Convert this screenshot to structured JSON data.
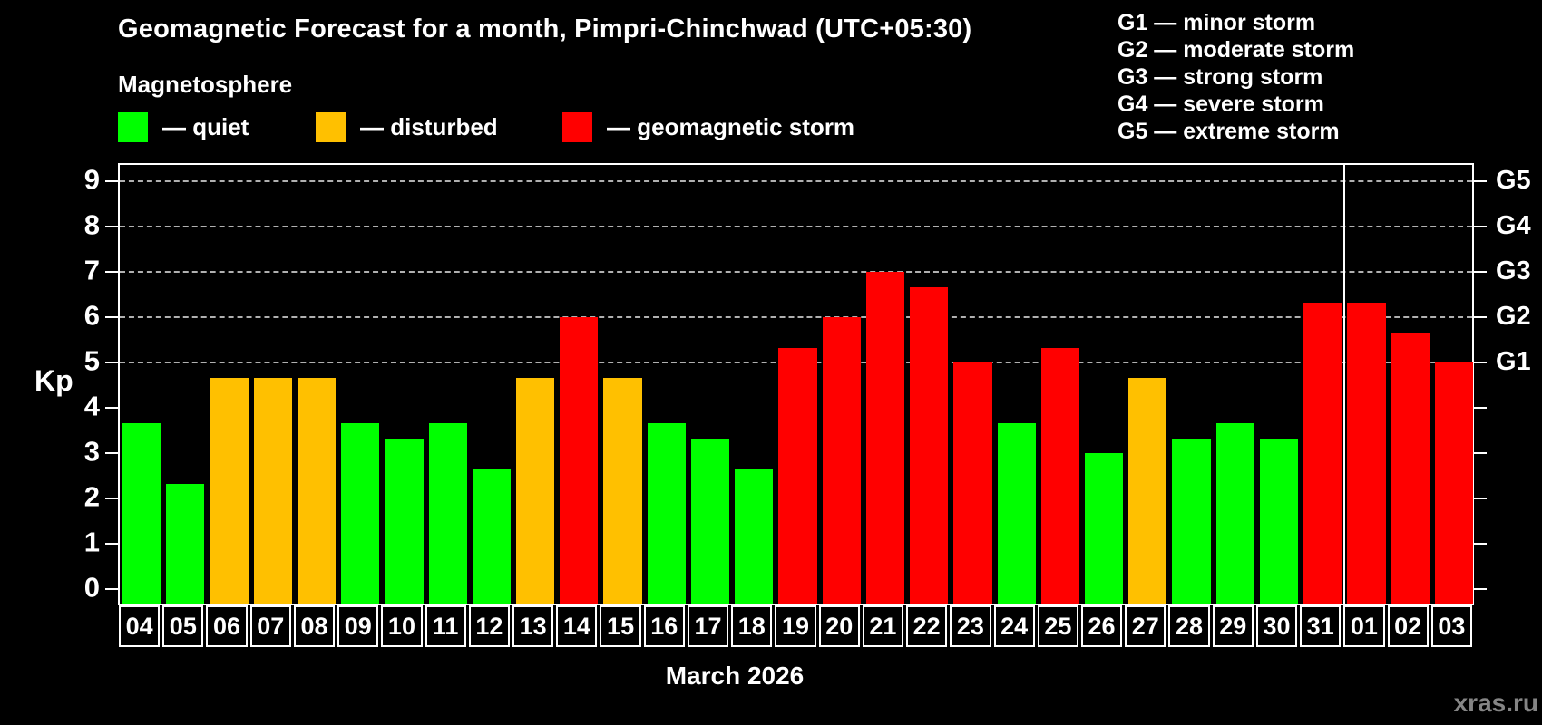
{
  "title": "Geomagnetic Forecast for a month, Pimpri-Chinchwad (UTC+05:30)",
  "subtitle": "Magnetosphere",
  "watermark": "xras.ru",
  "colors": {
    "quiet": "#00ff00",
    "disturbed": "#ffc000",
    "storm": "#ff0000",
    "background": "#000000",
    "text": "#ffffff",
    "grid": "#b0b0b0",
    "watermark_text": "#858585"
  },
  "legend": {
    "items": [
      {
        "status": "quiet",
        "label": "— quiet"
      },
      {
        "status": "disturbed",
        "label": "— disturbed"
      },
      {
        "status": "storm",
        "label": "— geomagnetic storm"
      }
    ]
  },
  "g_legend": {
    "lines": [
      "G1 — minor storm",
      "G2 — moderate storm",
      "G3 — strong storm",
      "G4 — severe storm",
      "G5 — extreme storm"
    ]
  },
  "axes": {
    "y_label": "Kp",
    "y_ticks": [
      0,
      1,
      2,
      3,
      4,
      5,
      6,
      7,
      8,
      9
    ],
    "right_labels": [
      {
        "code": "G1",
        "kp": 5
      },
      {
        "code": "G2",
        "kp": 6
      },
      {
        "code": "G3",
        "kp": 7
      },
      {
        "code": "G4",
        "kp": 8
      },
      {
        "code": "G5",
        "kp": 9
      }
    ],
    "x_label": "March 2026"
  },
  "chart_data": {
    "type": "bar",
    "title": "Geomagnetic Forecast for a month, Pimpri-Chinchwad (UTC+05:30)",
    "xlabel": "March 2026",
    "ylabel": "Kp",
    "ylim": [
      0,
      9
    ],
    "grid": "horizontal dashed lines at Kp 5,6,7,8,9 (G1–G5 levels)",
    "legend_position": "top-left",
    "categories": [
      "04",
      "05",
      "06",
      "07",
      "08",
      "09",
      "10",
      "11",
      "12",
      "13",
      "14",
      "15",
      "16",
      "17",
      "18",
      "19",
      "20",
      "21",
      "22",
      "23",
      "24",
      "25",
      "26",
      "27",
      "28",
      "29",
      "30",
      "31",
      "01",
      "02",
      "03"
    ],
    "values": [
      3.67,
      2.33,
      4.67,
      4.67,
      4.67,
      3.67,
      3.33,
      3.67,
      2.67,
      4.67,
      6.0,
      4.67,
      3.67,
      3.33,
      2.67,
      5.33,
      6.0,
      7.0,
      6.67,
      5.0,
      3.67,
      5.33,
      3.0,
      4.67,
      3.33,
      3.67,
      3.33,
      6.33,
      6.33,
      5.67,
      5.0
    ],
    "statuses": [
      "quiet",
      "quiet",
      "disturbed",
      "disturbed",
      "disturbed",
      "quiet",
      "quiet",
      "quiet",
      "quiet",
      "disturbed",
      "storm",
      "disturbed",
      "quiet",
      "quiet",
      "quiet",
      "storm",
      "storm",
      "storm",
      "storm",
      "storm",
      "quiet",
      "storm",
      "quiet",
      "disturbed",
      "quiet",
      "quiet",
      "quiet",
      "storm",
      "storm",
      "storm",
      "storm"
    ],
    "month_boundary_after_index": 27
  }
}
